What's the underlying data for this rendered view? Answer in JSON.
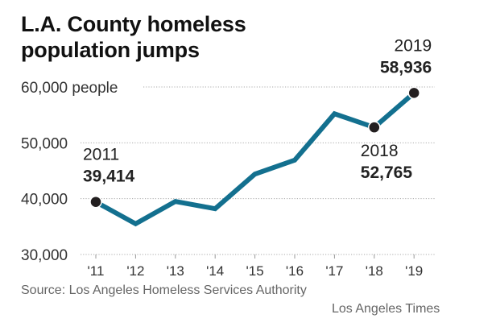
{
  "chart_data": {
    "type": "line",
    "title": "L.A. County homeless population jumps",
    "title_lines": [
      "L.A. County homeless",
      "population jumps"
    ],
    "x": [
      "'11",
      "'12",
      "'13",
      "'14",
      "'15",
      "'16",
      "'17",
      "'18",
      "'19"
    ],
    "years": [
      2011,
      2012,
      2013,
      2014,
      2015,
      2016,
      2017,
      2018,
      2019
    ],
    "series": [
      {
        "name": "Homeless population",
        "color": "#13708f",
        "values": [
          39414,
          35500,
          39500,
          38200,
          44400,
          46900,
          55200,
          52765,
          58936
        ]
      }
    ],
    "ylim": [
      30000,
      60000
    ],
    "yticks": [
      30000,
      40000,
      50000,
      60000
    ],
    "ytick_labels": [
      "30,000",
      "40,000",
      "50,000",
      "60,000 people"
    ],
    "xlabel": "",
    "ylabel": "people",
    "grid": true,
    "annotations": [
      {
        "index": 0,
        "year": "2011",
        "value": "39,414",
        "placement": "above"
      },
      {
        "index": 7,
        "year": "2018",
        "value": "52,765",
        "placement": "below"
      },
      {
        "index": 8,
        "year": "2019",
        "value": "58,936",
        "placement": "above"
      }
    ]
  },
  "source": "Source: Los Angeles Homeless Services Authority",
  "credit": "Los Angeles Times",
  "colors": {
    "line": "#13708f",
    "marker": "#231f20",
    "grid": "#aaaaaa"
  }
}
